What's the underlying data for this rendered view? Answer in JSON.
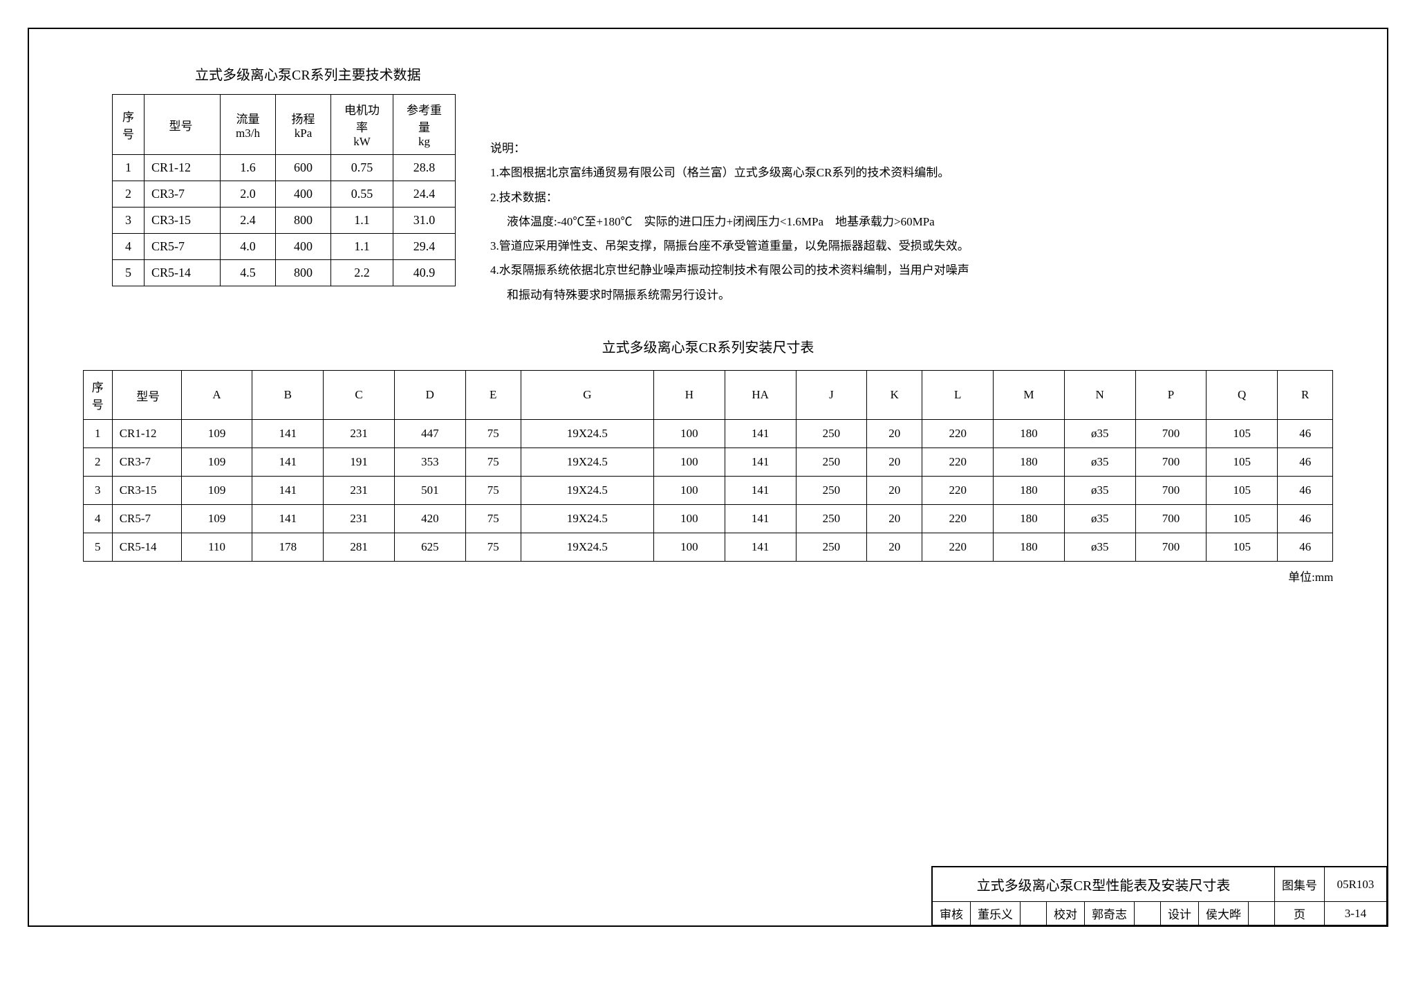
{
  "tech_title": "立式多级离心泵CR系列主要技术数据",
  "tech_table": {
    "columns": [
      "序号",
      "型号",
      "流量\nm3/h",
      "扬程\nkPa",
      "电机功率\nkW",
      "参考重量\nkg"
    ],
    "rows": [
      [
        "1",
        "CR1-12",
        "1.6",
        "600",
        "0.75",
        "28.8"
      ],
      [
        "2",
        "CR3-7",
        "2.0",
        "400",
        "0.55",
        "24.4"
      ],
      [
        "3",
        "CR3-15",
        "2.4",
        "800",
        "1.1",
        "31.0"
      ],
      [
        "4",
        "CR5-7",
        "4.0",
        "400",
        "1.1",
        "29.4"
      ],
      [
        "5",
        "CR5-14",
        "4.5",
        "800",
        "2.2",
        "40.9"
      ]
    ]
  },
  "notes": {
    "heading": "说明：",
    "n1": "1.本图根据北京富纬通贸易有限公司（格兰富）立式多级离心泵CR系列的技术资料编制。",
    "n2": "2.技术数据：",
    "n2a": "液体温度:-40℃至+180℃　实际的进口压力+闭阀压力<1.6MPa　地基承载力>60MPa",
    "n3": "3.管道应采用弹性支、吊架支撑，隔振台座不承受管道重量，以免隔振器超载、受损或失效。",
    "n4": "4.水泵隔振系统依据北京世纪静业噪声振动控制技术有限公司的技术资料编制，当用户对噪声",
    "n4b": "和振动有特殊要求时隔振系统需另行设计。"
  },
  "dim_title": "立式多级离心泵CR系列安装尺寸表",
  "dim_table": {
    "columns": [
      "序号",
      "型号",
      "A",
      "B",
      "C",
      "D",
      "E",
      "G",
      "H",
      "HA",
      "J",
      "K",
      "L",
      "M",
      "N",
      "P",
      "Q",
      "R"
    ],
    "rows": [
      [
        "1",
        "CR1-12",
        "109",
        "141",
        "231",
        "447",
        "75",
        "19X24.5",
        "100",
        "141",
        "250",
        "20",
        "220",
        "180",
        "ø35",
        "700",
        "105",
        "46"
      ],
      [
        "2",
        "CR3-7",
        "109",
        "141",
        "191",
        "353",
        "75",
        "19X24.5",
        "100",
        "141",
        "250",
        "20",
        "220",
        "180",
        "ø35",
        "700",
        "105",
        "46"
      ],
      [
        "3",
        "CR3-15",
        "109",
        "141",
        "231",
        "501",
        "75",
        "19X24.5",
        "100",
        "141",
        "250",
        "20",
        "220",
        "180",
        "ø35",
        "700",
        "105",
        "46"
      ],
      [
        "4",
        "CR5-7",
        "109",
        "141",
        "231",
        "420",
        "75",
        "19X24.5",
        "100",
        "141",
        "250",
        "20",
        "220",
        "180",
        "ø35",
        "700",
        "105",
        "46"
      ],
      [
        "5",
        "CR5-14",
        "110",
        "178",
        "281",
        "625",
        "75",
        "19X24.5",
        "100",
        "141",
        "250",
        "20",
        "220",
        "180",
        "ø35",
        "700",
        "105",
        "46"
      ]
    ]
  },
  "unit_label": "单位:mm",
  "title_block": {
    "main_title": "立式多级离心泵CR型性能表及安装尺寸表",
    "tuji_label": "图集号",
    "tuji_value": "05R103",
    "shenhe_label": "审核",
    "shenhe_name": "董乐义",
    "jiaodui_label": "校对",
    "jiaodui_name": "郭奇志",
    "sheji_label": "设计",
    "sheji_name": "侯大晔",
    "page_label": "页",
    "page_value": "3-14"
  }
}
